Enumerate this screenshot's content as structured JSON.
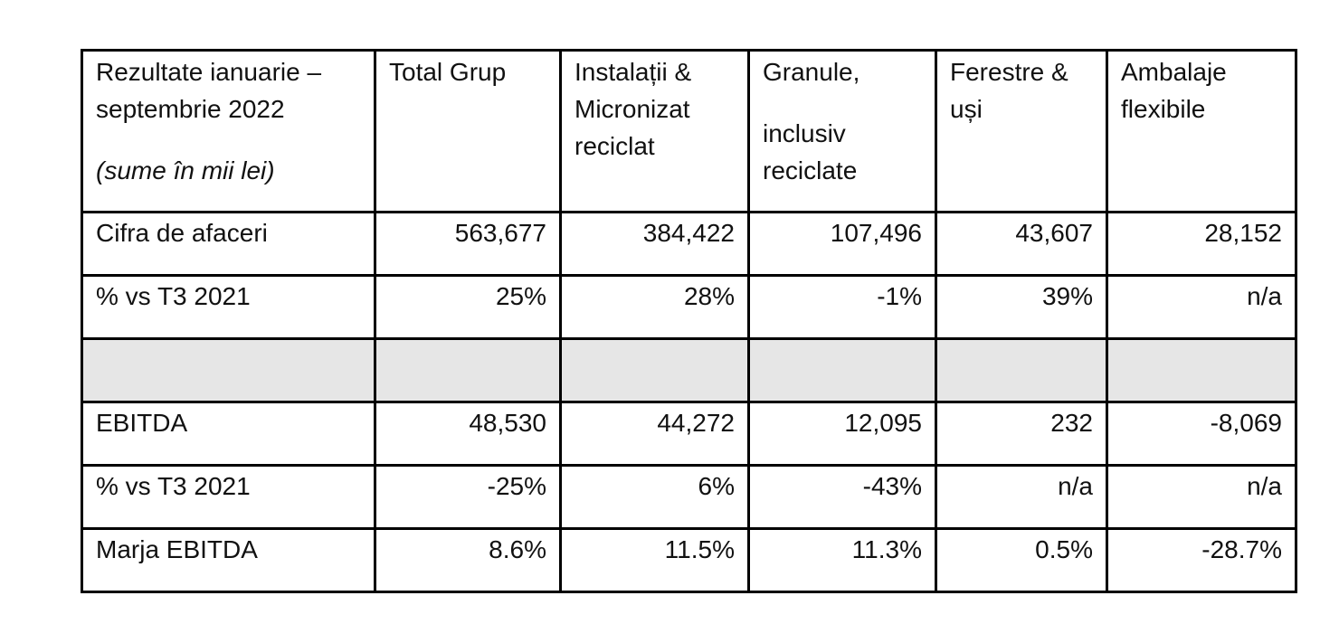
{
  "table": {
    "header": {
      "col1_line1": "Rezultate ianuarie –",
      "col1_line2": "septembrie 2022",
      "col1_note": "(sume în mii lei)",
      "col2": "Total Grup",
      "col3_line1": "Instalații &",
      "col3_line2": "Micronizat",
      "col3_line3": "reciclat",
      "col4_line1": "Granule,",
      "col4_line2": "inclusiv",
      "col4_line3": "reciclate",
      "col5_line1": "Ferestre &",
      "col5_line2": "uși",
      "col6_line1": "Ambalaje",
      "col6_line2": "flexibile"
    },
    "rows": [
      {
        "label": "Cifra de afaceri",
        "values": [
          "563,677",
          "384,422",
          "107,496",
          "43,607",
          "28,152"
        ]
      },
      {
        "label": "% vs T3 2021",
        "values": [
          "25%",
          "28%",
          "-1%",
          "39%",
          "n/a"
        ]
      },
      {
        "label": "EBITDA",
        "values": [
          "48,530",
          "44,272",
          "12,095",
          "232",
          "-8,069"
        ]
      },
      {
        "label": "% vs T3 2021",
        "values": [
          "-25%",
          "6%",
          "-43%",
          "n/a",
          "n/a"
        ]
      },
      {
        "label": "Marja EBITDA",
        "values": [
          "8.6%",
          "11.5%",
          "11.3%",
          "0.5%",
          "-28.7%"
        ]
      }
    ],
    "shaded_row_color": "#e6e6e6"
  }
}
